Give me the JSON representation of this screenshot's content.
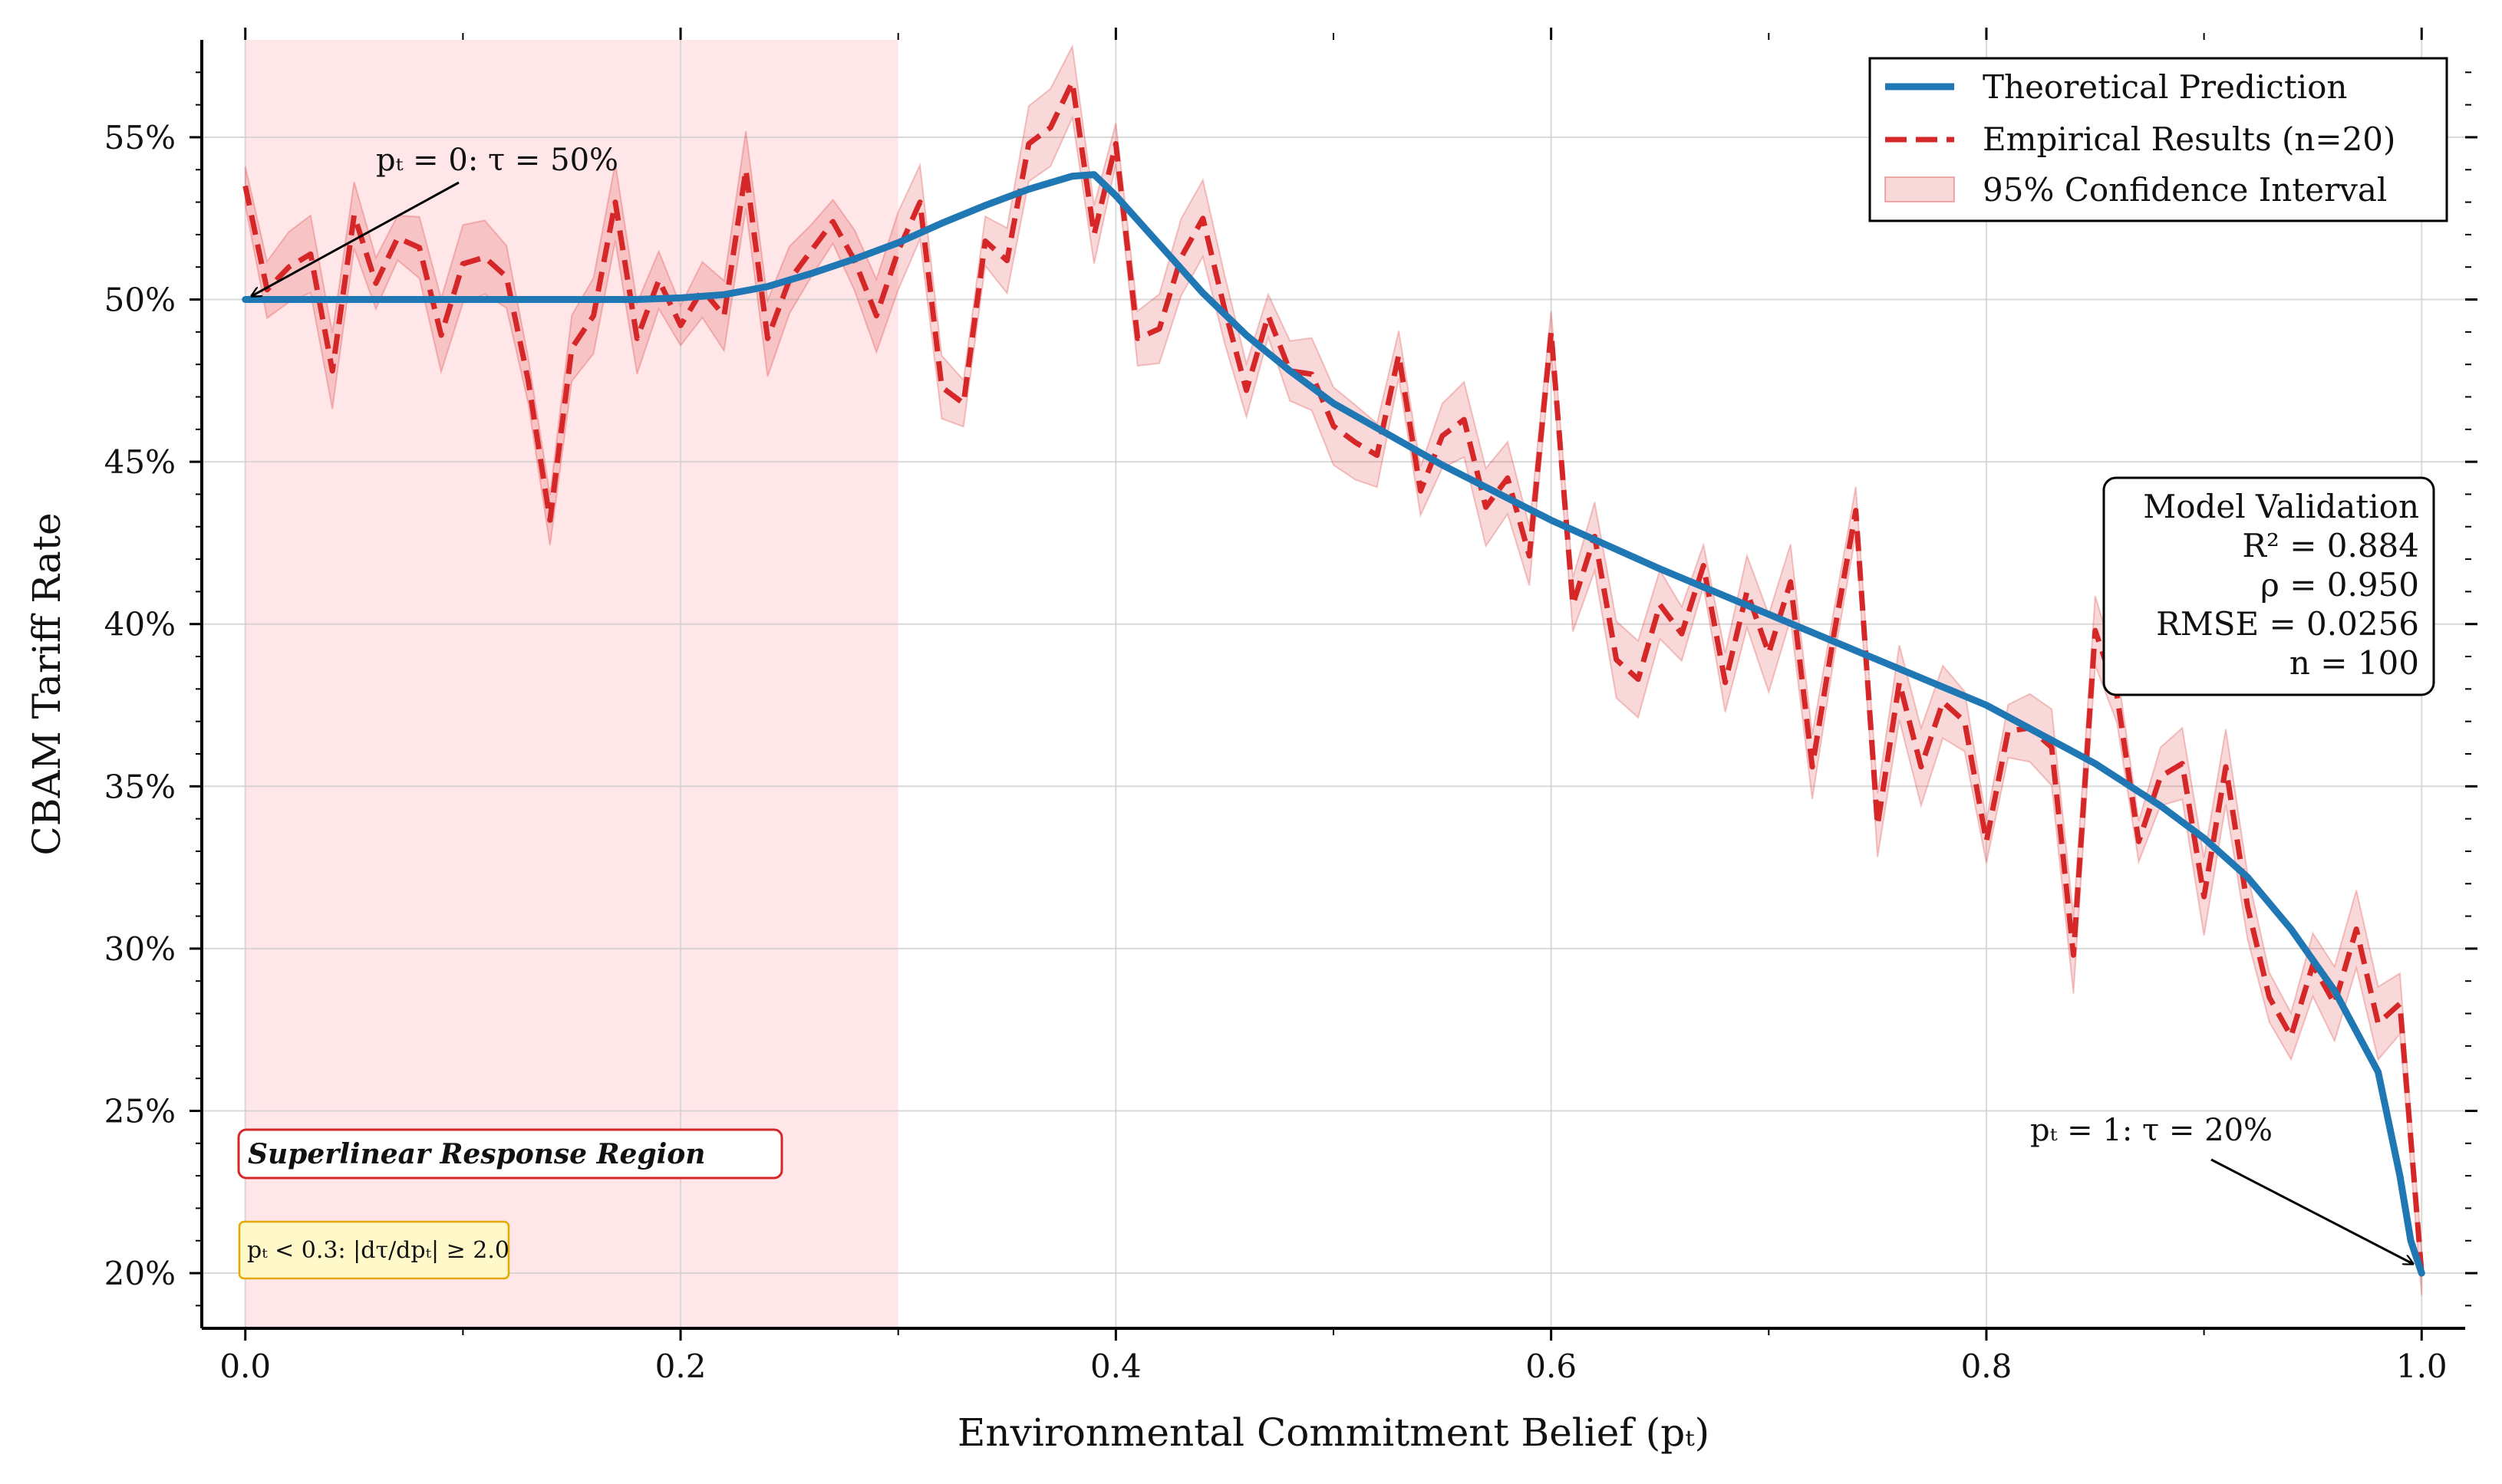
{
  "chart_data": {
    "type": "line",
    "xlabel": "Environmental Commitment Belief (pₜ)",
    "ylabel": "CBAM Tariff Rate",
    "xlim": [
      -0.02,
      1.02
    ],
    "ylim": [
      0.183,
      0.58
    ],
    "x_ticks": [
      0.0,
      0.2,
      0.4,
      0.6,
      0.8,
      1.0
    ],
    "x_tick_labels": [
      "0.0",
      "0.2",
      "0.4",
      "0.6",
      "0.8",
      "1.0"
    ],
    "y_ticks": [
      0.2,
      0.25,
      0.3,
      0.35,
      0.4,
      0.45,
      0.5,
      0.55
    ],
    "y_tick_labels": [
      "20%",
      "25%",
      "30%",
      "35%",
      "40%",
      "45%",
      "50%",
      "55%"
    ],
    "grid": true,
    "legend_position": "top-right",
    "legend": [
      {
        "label": "Theoretical Prediction",
        "style": "solid-line",
        "color": "#1f77b4"
      },
      {
        "label": "Empirical Results (n=20)",
        "style": "dashed-line",
        "color": "#d62728"
      },
      {
        "label": "95% Confidence Interval",
        "style": "patch",
        "color": "#d62728"
      }
    ],
    "shaded_region": {
      "x": [
        0.0,
        0.3
      ],
      "color": "#ffc8cc",
      "label": "Superlinear Response Region"
    },
    "series": [
      {
        "name": "Theoretical Prediction",
        "color": "#1f77b4",
        "x": [
          0.0,
          0.05,
          0.1,
          0.15,
          0.18,
          0.2,
          0.22,
          0.24,
          0.26,
          0.28,
          0.3,
          0.32,
          0.34,
          0.36,
          0.38,
          0.39,
          0.4,
          0.42,
          0.44,
          0.46,
          0.48,
          0.5,
          0.55,
          0.6,
          0.65,
          0.7,
          0.75,
          0.8,
          0.85,
          0.88,
          0.9,
          0.92,
          0.94,
          0.96,
          0.98,
          0.99,
          0.995,
          1.0
        ],
        "y": [
          0.5,
          0.5,
          0.5,
          0.5,
          0.5,
          0.5005,
          0.5015,
          0.504,
          0.508,
          0.5125,
          0.5175,
          0.5235,
          0.529,
          0.534,
          0.538,
          0.5385,
          0.532,
          0.517,
          0.502,
          0.489,
          0.478,
          0.468,
          0.449,
          0.432,
          0.417,
          0.403,
          0.389,
          0.375,
          0.357,
          0.344,
          0.334,
          0.322,
          0.306,
          0.287,
          0.262,
          0.23,
          0.21,
          0.2
        ]
      },
      {
        "name": "Empirical Results (n=20)",
        "color": "#d62728",
        "x": [
          0.0,
          0.01,
          0.02,
          0.03,
          0.04,
          0.05,
          0.06,
          0.07,
          0.08,
          0.09,
          0.1,
          0.11,
          0.12,
          0.13,
          0.14,
          0.15,
          0.16,
          0.17,
          0.18,
          0.19,
          0.2,
          0.21,
          0.22,
          0.23,
          0.24,
          0.25,
          0.26,
          0.27,
          0.28,
          0.29,
          0.3,
          0.31,
          0.32,
          0.33,
          0.34,
          0.35,
          0.36,
          0.37,
          0.38,
          0.39,
          0.4,
          0.41,
          0.42,
          0.43,
          0.44,
          0.45,
          0.46,
          0.47,
          0.48,
          0.49,
          0.5,
          0.51,
          0.52,
          0.53,
          0.54,
          0.55,
          0.56,
          0.57,
          0.58,
          0.59,
          0.6,
          0.61,
          0.62,
          0.63,
          0.64,
          0.65,
          0.66,
          0.67,
          0.68,
          0.69,
          0.7,
          0.71,
          0.72,
          0.73,
          0.74,
          0.75,
          0.76,
          0.77,
          0.78,
          0.79,
          0.8,
          0.81,
          0.82,
          0.83,
          0.84,
          0.85,
          0.86,
          0.87,
          0.88,
          0.89,
          0.9,
          0.91,
          0.92,
          0.93,
          0.94,
          0.95,
          0.96,
          0.97,
          0.98,
          0.99,
          1.0
        ],
        "y": [
          0.535,
          0.503,
          0.51,
          0.514,
          0.478,
          0.526,
          0.505,
          0.519,
          0.516,
          0.489,
          0.511,
          0.513,
          0.507,
          0.475,
          0.432,
          0.485,
          0.495,
          0.53,
          0.488,
          0.506,
          0.492,
          0.503,
          0.495,
          0.54,
          0.488,
          0.506,
          0.515,
          0.524,
          0.512,
          0.495,
          0.515,
          0.53,
          0.473,
          0.468,
          0.518,
          0.512,
          0.548,
          0.553,
          0.567,
          0.52,
          0.548,
          0.488,
          0.491,
          0.513,
          0.525,
          0.497,
          0.472,
          0.495,
          0.478,
          0.477,
          0.461,
          0.456,
          0.452,
          0.483,
          0.441,
          0.458,
          0.463,
          0.436,
          0.445,
          0.421,
          0.49,
          0.406,
          0.427,
          0.389,
          0.383,
          0.406,
          0.397,
          0.418,
          0.382,
          0.41,
          0.391,
          0.413,
          0.356,
          0.397,
          0.435,
          0.338,
          0.382,
          0.356,
          0.376,
          0.37,
          0.333,
          0.367,
          0.368,
          0.362,
          0.298,
          0.398,
          0.378,
          0.333,
          0.353,
          0.357,
          0.316,
          0.356,
          0.313,
          0.285,
          0.273,
          0.295,
          0.283,
          0.306,
          0.277,
          0.283,
          0.2
        ]
      }
    ],
    "annotations": {
      "p0_label": "pₜ = 0: τ = 50%",
      "p1_label": "pₜ = 1: τ = 20%",
      "region_label": "Superlinear Response Region",
      "condition_label": "pₜ < 0.3: |dτ/dpₜ| ≥ 2.0",
      "validation_box": [
        "Model Validation",
        "R² = 0.884",
        "ρ = 0.950",
        "RMSE = 0.0256",
        "n = 100"
      ]
    }
  }
}
